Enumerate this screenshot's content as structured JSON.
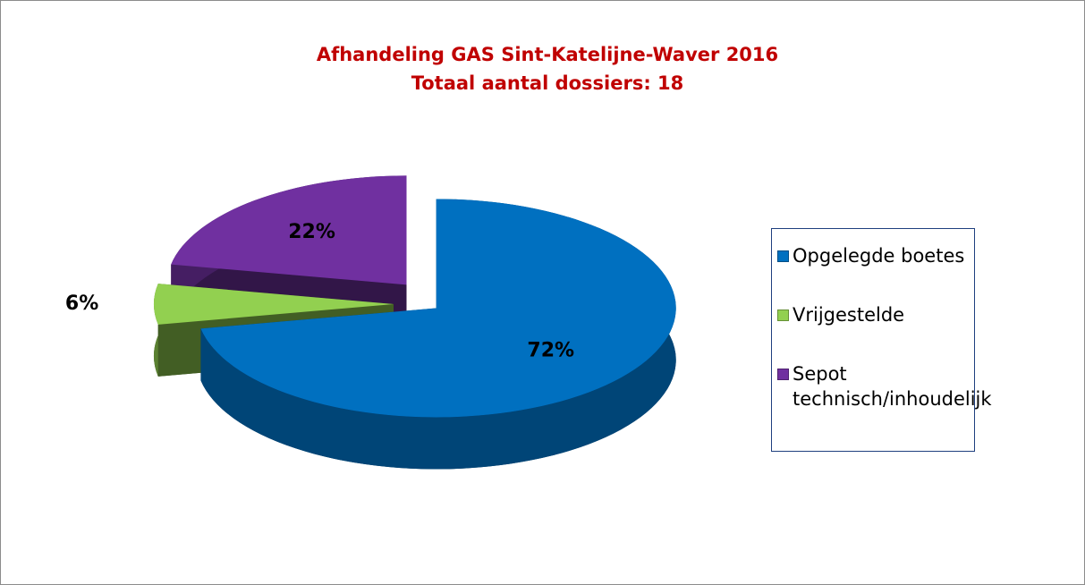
{
  "chart_data": {
    "type": "pie",
    "title": "Afhandeling GAS Sint-Katelijne-Waver 2016",
    "subtitle": "Totaal aantal dossiers: 18",
    "categories": [
      "Opgelegde boetes",
      "Vrijgestelde",
      "Sepot technisch/inhoudelijk"
    ],
    "values": [
      72,
      6,
      22
    ],
    "value_labels": [
      "72%",
      "6%",
      "22%"
    ],
    "colors": [
      "#0070c0",
      "#92d050",
      "#7030a0"
    ],
    "legend": "right"
  }
}
